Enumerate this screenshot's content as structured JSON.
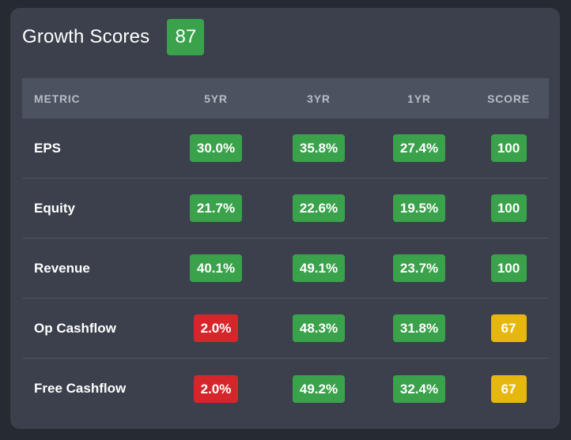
{
  "header": {
    "title": "Growth Scores",
    "total_score": "87"
  },
  "colors": {
    "good": "#3aa24b",
    "bad": "#d6262b",
    "neutral": "#e5b70f",
    "card_bg": "#3b404c",
    "header_row_bg": "#4c5260"
  },
  "table": {
    "columns": [
      "METRIC",
      "5YR",
      "3YR",
      "1YR",
      "SCORE"
    ],
    "rows": [
      {
        "metric": "EPS",
        "y5": {
          "value": "30.0%",
          "status": "good"
        },
        "y3": {
          "value": "35.8%",
          "status": "good"
        },
        "y1": {
          "value": "27.4%",
          "status": "good"
        },
        "score": {
          "value": "100",
          "status": "good"
        }
      },
      {
        "metric": "Equity",
        "y5": {
          "value": "21.7%",
          "status": "good"
        },
        "y3": {
          "value": "22.6%",
          "status": "good"
        },
        "y1": {
          "value": "19.5%",
          "status": "good"
        },
        "score": {
          "value": "100",
          "status": "good"
        }
      },
      {
        "metric": "Revenue",
        "y5": {
          "value": "40.1%",
          "status": "good"
        },
        "y3": {
          "value": "49.1%",
          "status": "good"
        },
        "y1": {
          "value": "23.7%",
          "status": "good"
        },
        "score": {
          "value": "100",
          "status": "good"
        }
      },
      {
        "metric": "Op Cashflow",
        "y5": {
          "value": "2.0%",
          "status": "bad"
        },
        "y3": {
          "value": "48.3%",
          "status": "good"
        },
        "y1": {
          "value": "31.8%",
          "status": "good"
        },
        "score": {
          "value": "67",
          "status": "neutral"
        }
      },
      {
        "metric": "Free Cashflow",
        "y5": {
          "value": "2.0%",
          "status": "bad"
        },
        "y3": {
          "value": "49.2%",
          "status": "good"
        },
        "y1": {
          "value": "32.4%",
          "status": "good"
        },
        "score": {
          "value": "67",
          "status": "neutral"
        }
      }
    ]
  }
}
